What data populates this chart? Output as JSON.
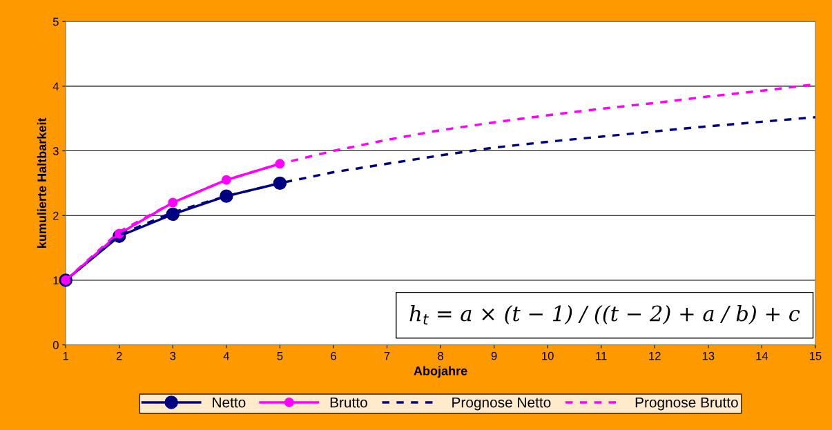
{
  "chart_data": {
    "type": "line",
    "xlabel": "Abojahre",
    "ylabel": "kumulierte Haltbarkeit",
    "xlim": [
      1,
      15
    ],
    "xticks": [
      1,
      2,
      3,
      4,
      5,
      6,
      7,
      8,
      9,
      10,
      11,
      12,
      13,
      14,
      15
    ],
    "ylim": [
      0,
      5
    ],
    "yticks": [
      0,
      1,
      2,
      3,
      4,
      5
    ],
    "grid": "y",
    "legend": "bottom",
    "series": [
      {
        "name": "Netto",
        "color": "#000080",
        "marker": "circle",
        "line_style": "solid",
        "x": [
          1,
          2,
          3,
          4,
          5
        ],
        "values": [
          1,
          1.68,
          2.02,
          2.3,
          2.5
        ]
      },
      {
        "name": "Brutto",
        "color": "#ff00ff",
        "marker": "circle",
        "line_style": "solid",
        "x": [
          1,
          2,
          3,
          4,
          5
        ],
        "values": [
          1,
          1.72,
          2.2,
          2.55,
          2.8
        ]
      },
      {
        "name": "Prognose Netto",
        "color": "#000080",
        "marker": "none",
        "line_style": "dashed",
        "x": [
          1,
          2,
          3,
          4,
          5,
          6,
          7,
          8,
          9,
          10,
          11,
          12,
          13,
          14,
          15
        ],
        "values": [
          1,
          1.7,
          2.05,
          2.3,
          2.5,
          2.67,
          2.8,
          2.93,
          3.05,
          3.14,
          3.22,
          3.3,
          3.38,
          3.45,
          3.52
        ]
      },
      {
        "name": "Prognose Brutto",
        "color": "#ff00ff",
        "marker": "none",
        "line_style": "dashed",
        "x": [
          1,
          2,
          3,
          4,
          5,
          6,
          7,
          8,
          9,
          10,
          11,
          12,
          13,
          14,
          15
        ],
        "values": [
          1,
          1.75,
          2.2,
          2.55,
          2.8,
          3.0,
          3.17,
          3.32,
          3.44,
          3.55,
          3.65,
          3.74,
          3.84,
          3.93,
          4.03
        ]
      }
    ],
    "annotations": [
      "h$_{t}$ = a × (t − 1) / ((t − 2) + a / b) + c"
    ]
  }
}
